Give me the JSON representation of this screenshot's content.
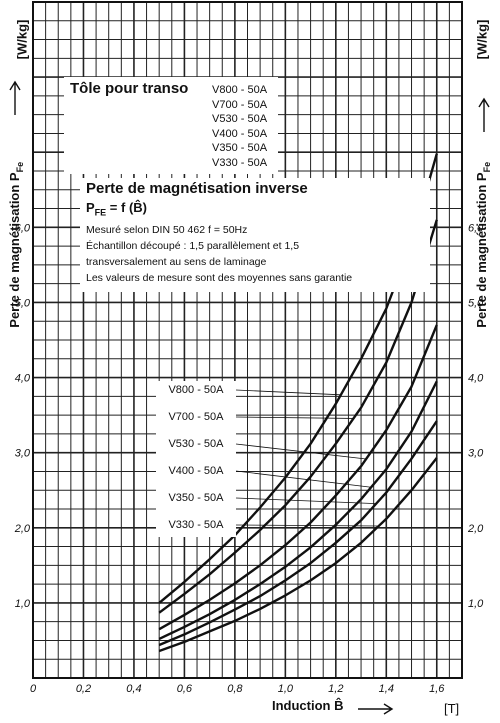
{
  "chart_data": {
    "type": "line",
    "xlim": [
      0,
      1.7
    ],
    "ylim": [
      0,
      9.0
    ],
    "grid": true,
    "x_ticks": [
      0,
      0.2,
      0.4,
      0.6,
      0.8,
      1.0,
      1.2,
      1.4,
      1.6
    ],
    "x_tick_labels": [
      "0",
      "0,2",
      "0,4",
      "0,6",
      "0,8",
      "1,0",
      "1,2",
      "1,4",
      "1,6"
    ],
    "y_ticks": [
      1,
      2,
      3,
      4,
      5,
      6
    ],
    "y_tick_labels": [
      "1,0",
      "2,0",
      "3,0",
      "4,0",
      "5,0",
      "6,0"
    ],
    "xlabel": "Induction B̂",
    "x_unit": "[T]",
    "ylabel": "Perte de magnétisation P",
    "ylabel_subscript": "Fe",
    "y_unit": "[W/kg]",
    "series": [
      {
        "name": "V800 - 50A",
        "x": [
          0.5,
          0.6,
          0.7,
          0.8,
          0.9,
          1.0,
          1.1,
          1.2,
          1.3,
          1.4,
          1.5,
          1.6
        ],
        "y": [
          1.0,
          1.28,
          1.58,
          1.9,
          2.27,
          2.67,
          3.12,
          3.65,
          4.25,
          4.92,
          5.8,
          6.98
        ]
      },
      {
        "name": "V700 - 50A",
        "x": [
          0.5,
          0.6,
          0.7,
          0.8,
          0.9,
          1.0,
          1.1,
          1.2,
          1.3,
          1.4,
          1.5,
          1.6
        ],
        "y": [
          0.87,
          1.12,
          1.38,
          1.67,
          1.97,
          2.3,
          2.68,
          3.12,
          3.6,
          4.2,
          5.0,
          6.1
        ]
      },
      {
        "name": "V530 - 50A",
        "x": [
          0.5,
          0.6,
          0.7,
          0.8,
          0.9,
          1.0,
          1.1,
          1.2,
          1.3,
          1.4,
          1.5,
          1.6
        ],
        "y": [
          0.65,
          0.84,
          1.04,
          1.26,
          1.5,
          1.77,
          2.07,
          2.43,
          2.82,
          3.3,
          3.88,
          4.7
        ]
      },
      {
        "name": "V400 - 50A",
        "x": [
          0.5,
          0.6,
          0.7,
          0.8,
          0.9,
          1.0,
          1.1,
          1.2,
          1.3,
          1.4,
          1.5,
          1.6
        ],
        "y": [
          0.52,
          0.68,
          0.85,
          1.04,
          1.25,
          1.48,
          1.74,
          2.04,
          2.38,
          2.78,
          3.28,
          3.95
        ]
      },
      {
        "name": "V350 - 50A",
        "x": [
          0.5,
          0.6,
          0.7,
          0.8,
          0.9,
          1.0,
          1.1,
          1.2,
          1.3,
          1.4,
          1.5,
          1.6
        ],
        "y": [
          0.44,
          0.58,
          0.74,
          0.91,
          1.09,
          1.3,
          1.53,
          1.8,
          2.1,
          2.47,
          2.92,
          3.42
        ]
      },
      {
        "name": "V330 - 50A",
        "x": [
          0.5,
          0.6,
          0.7,
          0.8,
          0.9,
          1.0,
          1.1,
          1.2,
          1.3,
          1.4,
          1.5,
          1.6
        ],
        "y": [
          0.36,
          0.48,
          0.62,
          0.76,
          0.92,
          1.1,
          1.3,
          1.53,
          1.8,
          2.12,
          2.5,
          2.93
        ]
      }
    ]
  },
  "box_transformer": {
    "title": "Tôle pour transo",
    "grades": [
      "V800 - 50A",
      "V700 - 50A",
      "V530 - 50A",
      "V400 - 50A",
      "V350 - 50A",
      "V330 - 50A"
    ]
  },
  "box_info": {
    "title": "Perte de magnétisation inverse",
    "formula": "P",
    "formula_subscript": "FE",
    "formula_rest": " = f (B̂)",
    "line1": "Mesuré selon DIN 50 462     f = 50Hz",
    "line2": "Échantillon découpé : 1,5 parallèlement et 1,5",
    "line3": "transversalement au sens de laminage",
    "line4": "Les valeurs de mesure sont des moyennes sans garantie"
  }
}
